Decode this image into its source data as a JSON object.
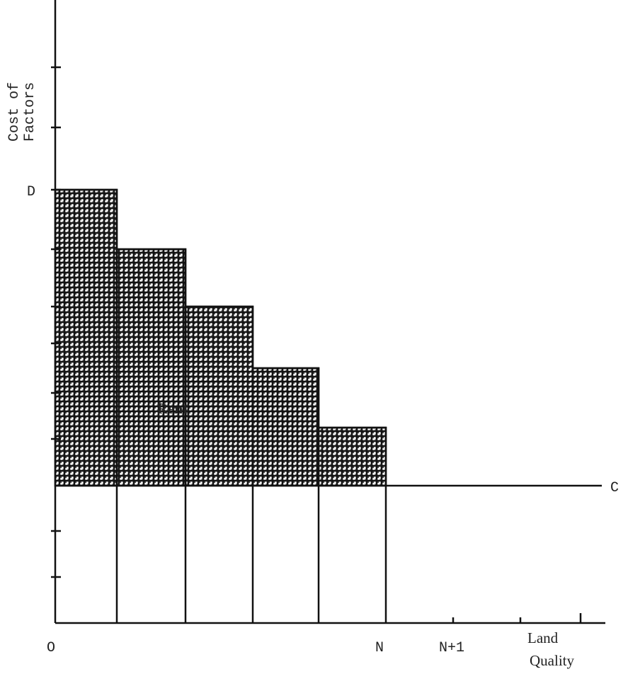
{
  "y_axis_label": [
    "Cost of",
    "Factors"
  ],
  "labels": {
    "d": "D",
    "c": "C",
    "origin": "O",
    "n": "N",
    "n_plus_1": "N+1",
    "rent": "Rent"
  },
  "x_axis_label": [
    "Land",
    "Quality"
  ]
}
